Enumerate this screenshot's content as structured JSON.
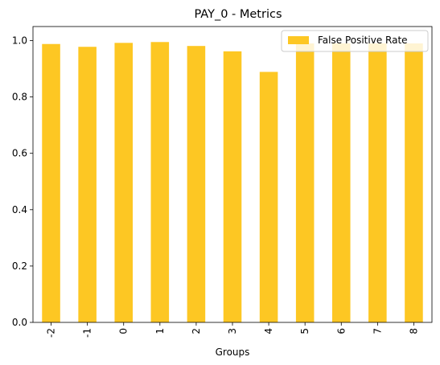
{
  "chart_data": {
    "type": "bar",
    "title": "PAY_0 - Metrics",
    "xlabel": "Groups",
    "ylabel": "",
    "categories": [
      "-2",
      "-1",
      "0",
      "1",
      "2",
      "3",
      "4",
      "5",
      "6",
      "7",
      "8"
    ],
    "series": [
      {
        "name": "False Positive Rate",
        "values": [
          0.988,
          0.978,
          0.992,
          0.995,
          0.981,
          0.962,
          0.889,
          0.99,
          0.99,
          0.99,
          0.99
        ],
        "color": "#fdc723"
      }
    ],
    "ylim": [
      0,
      1.05
    ],
    "yticks": [
      "0.0",
      "0.2",
      "0.4",
      "0.6",
      "0.8",
      "1.0"
    ],
    "legend_position": "top-right",
    "grid": false
  }
}
